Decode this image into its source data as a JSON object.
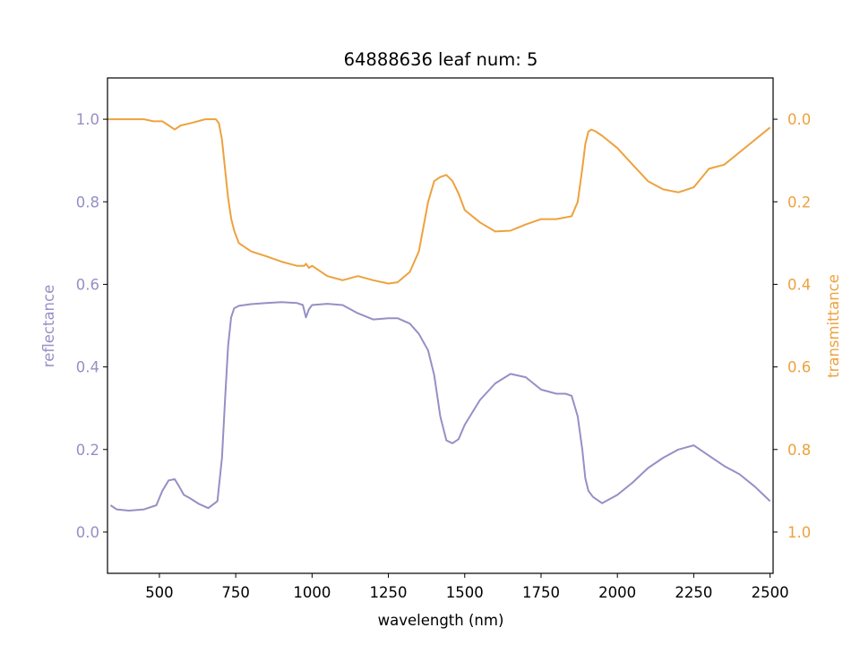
{
  "chart_data": {
    "type": "line",
    "title": "64888636 leaf num: 5",
    "xlabel": "wavelength (nm)",
    "ylabel_left": "reflectance",
    "ylabel_right": "transmittance",
    "xlim": [
      330,
      2510
    ],
    "ylim_left": [
      -0.1,
      1.1
    ],
    "ylim_right_inverted": [
      1.1,
      -0.1
    ],
    "x_ticks": [
      "500",
      "750",
      "1000",
      "1250",
      "1500",
      "1750",
      "2000",
      "2250",
      "2500"
    ],
    "y_left_ticks": [
      "0.0",
      "0.2",
      "0.4",
      "0.6",
      "0.8",
      "1.0"
    ],
    "y_right_ticks": [
      "0.0",
      "0.2",
      "0.4",
      "0.6",
      "0.8",
      "1.0"
    ],
    "grid": false,
    "colors": {
      "reflectance": "#9590c5",
      "transmittance": "#eda23e"
    },
    "series": [
      {
        "axis": "left",
        "x": [
          340,
          360,
          400,
          450,
          490,
          510,
          530,
          550,
          565,
          580,
          600,
          630,
          660,
          690,
          705,
          715,
          725,
          735,
          745,
          760,
          800,
          850,
          900,
          950,
          970,
          980,
          990,
          1000,
          1050,
          1100,
          1150,
          1200,
          1250,
          1280,
          1320,
          1350,
          1380,
          1400,
          1420,
          1440,
          1460,
          1480,
          1500,
          1550,
          1600,
          1650,
          1700,
          1750,
          1800,
          1830,
          1850,
          1870,
          1885,
          1895,
          1905,
          1920,
          1950,
          2000,
          2050,
          2100,
          2150,
          2200,
          2250,
          2300,
          2350,
          2400,
          2450,
          2500
        ],
        "y": [
          0.065,
          0.055,
          0.052,
          0.055,
          0.065,
          0.1,
          0.125,
          0.128,
          0.11,
          0.09,
          0.082,
          0.068,
          0.058,
          0.075,
          0.18,
          0.32,
          0.45,
          0.52,
          0.542,
          0.548,
          0.552,
          0.555,
          0.557,
          0.555,
          0.55,
          0.52,
          0.54,
          0.55,
          0.553,
          0.55,
          0.53,
          0.515,
          0.518,
          0.518,
          0.505,
          0.48,
          0.44,
          0.38,
          0.28,
          0.222,
          0.215,
          0.225,
          0.26,
          0.32,
          0.36,
          0.383,
          0.375,
          0.345,
          0.335,
          0.335,
          0.33,
          0.28,
          0.2,
          0.13,
          0.1,
          0.085,
          0.07,
          0.09,
          0.12,
          0.155,
          0.18,
          0.2,
          0.21,
          0.185,
          0.16,
          0.14,
          0.11,
          0.075
        ]
      },
      {
        "axis": "right",
        "x": [
          330,
          360,
          400,
          450,
          480,
          510,
          530,
          550,
          570,
          600,
          650,
          685,
          695,
          705,
          715,
          725,
          735,
          745,
          760,
          800,
          850,
          900,
          950,
          975,
          980,
          990,
          1000,
          1050,
          1100,
          1150,
          1200,
          1250,
          1280,
          1320,
          1350,
          1380,
          1400,
          1420,
          1440,
          1460,
          1480,
          1500,
          1550,
          1600,
          1650,
          1700,
          1750,
          1800,
          1850,
          1870,
          1885,
          1895,
          1905,
          1915,
          1930,
          1950,
          2000,
          2050,
          2100,
          2150,
          2200,
          2250,
          2300,
          2350,
          2400,
          2450,
          2500
        ],
        "y": [
          0.0,
          0.0,
          0.0,
          0.0,
          0.005,
          0.005,
          0.015,
          0.025,
          0.015,
          0.01,
          0.0,
          0.0,
          0.01,
          0.05,
          0.12,
          0.19,
          0.24,
          0.27,
          0.3,
          0.32,
          0.332,
          0.345,
          0.355,
          0.355,
          0.35,
          0.36,
          0.355,
          0.38,
          0.39,
          0.38,
          0.39,
          0.398,
          0.395,
          0.37,
          0.32,
          0.2,
          0.15,
          0.14,
          0.135,
          0.15,
          0.18,
          0.22,
          0.25,
          0.272,
          0.27,
          0.255,
          0.242,
          0.242,
          0.235,
          0.2,
          0.12,
          0.06,
          0.03,
          0.025,
          0.03,
          0.04,
          0.07,
          0.11,
          0.15,
          0.17,
          0.177,
          0.165,
          0.12,
          0.11,
          0.08,
          0.05,
          0.02
        ]
      }
    ]
  }
}
